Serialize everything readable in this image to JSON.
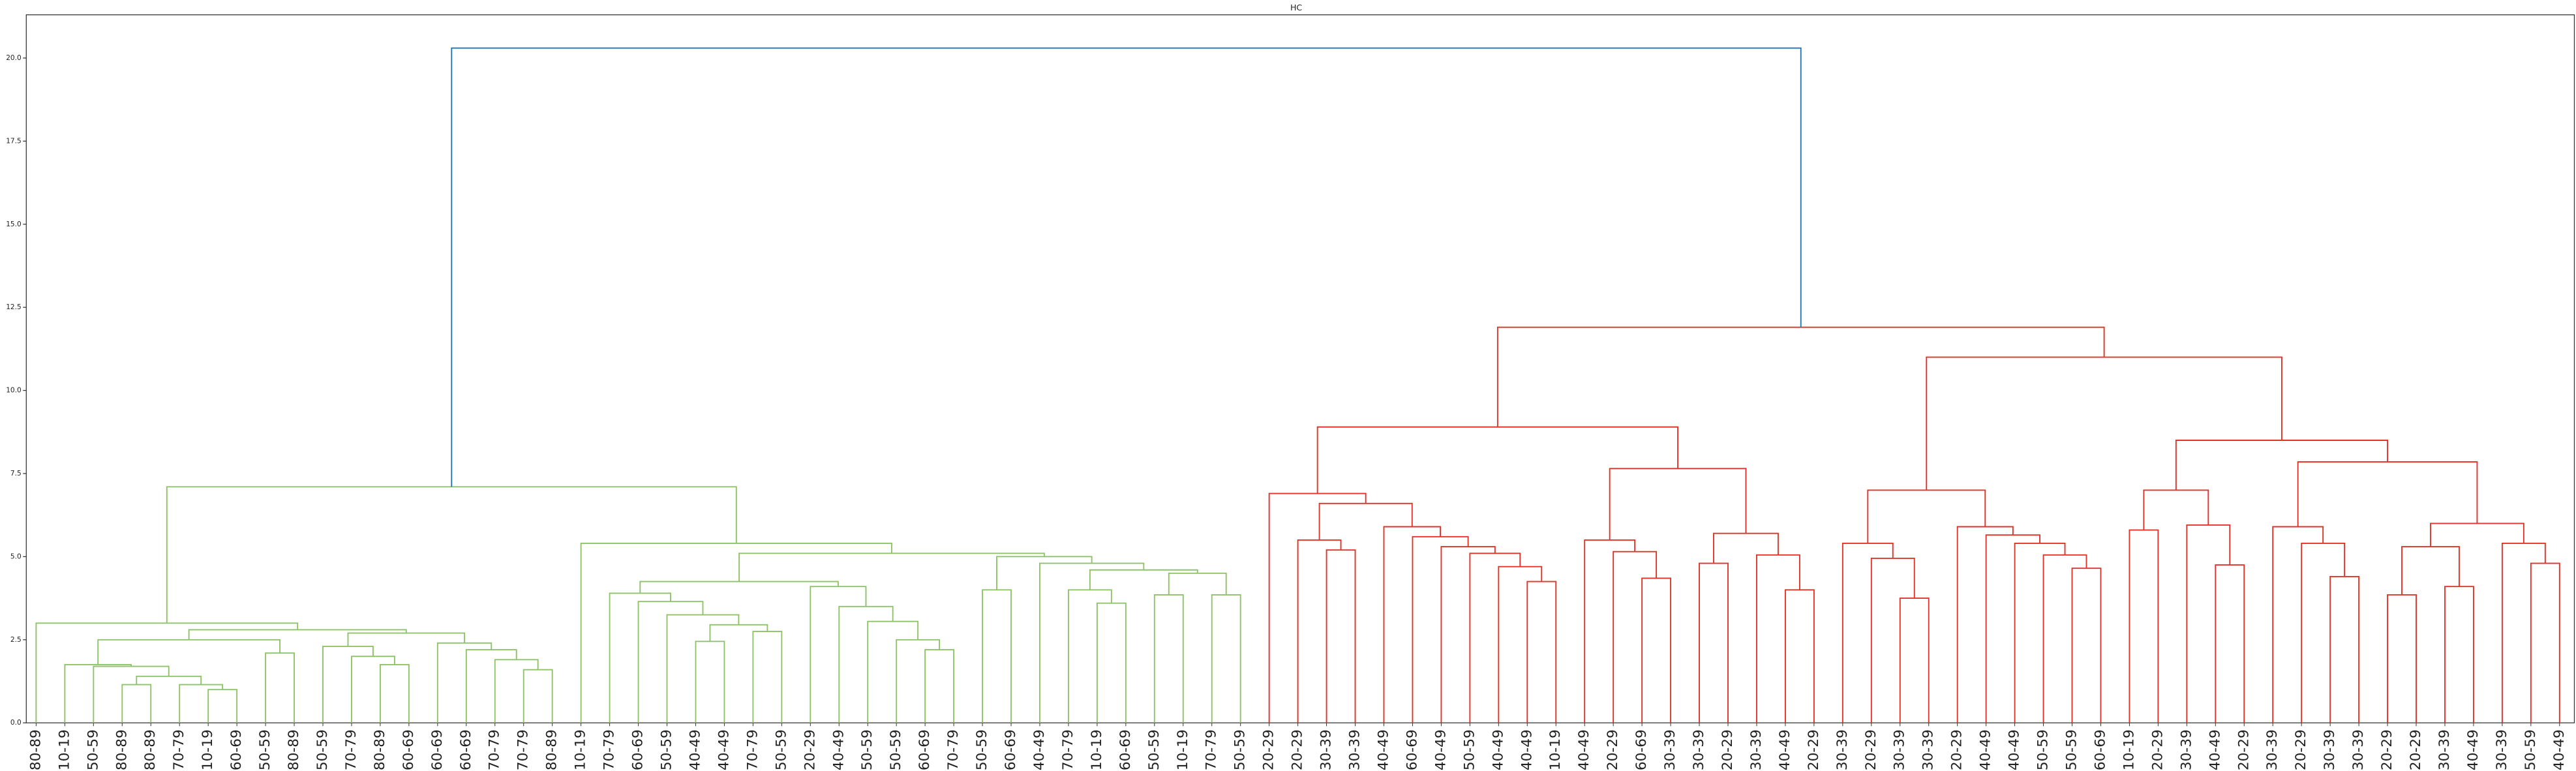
{
  "chart_data": {
    "type": "dendrogram",
    "title": "HC",
    "ylim": [
      0,
      21.3
    ],
    "yticks": [
      {
        "value": 0,
        "label": "0.0"
      },
      2.5,
      {
        "value": 5,
        "label": "5.0"
      },
      7.5,
      {
        "value": 10,
        "label": "10.0"
      },
      12.5,
      {
        "value": 15,
        "label": "15.0"
      },
      17.5,
      {
        "value": 20,
        "label": "20.0"
      }
    ],
    "tree": {
      "height": 20.3,
      "color": "#1f77b4",
      "children": [
        {
          "height": 7.1,
          "color": "#8fc36a",
          "children": [
            {
              "height": 3.0,
              "children": [
                "80-89",
                {
                  "height": 2.8,
                  "children": [
                    {
                      "height": 2.5,
                      "children": [
                        {
                          "height": 1.75,
                          "children": [
                            "10-19",
                            {
                              "height": 1.7,
                              "children": [
                                "50-59",
                                {
                                  "height": 1.4,
                                  "children": [
                                    {
                                      "height": 1.15,
                                      "children": [
                                        "80-89",
                                        "80-89"
                                      ]
                                    },
                                    {
                                      "height": 1.15,
                                      "children": [
                                        "70-79",
                                        {
                                          "height": 1.0,
                                          "children": [
                                            "10-19",
                                            "60-69"
                                          ]
                                        }
                                      ]
                                    }
                                  ]
                                }
                              ]
                            }
                          ]
                        },
                        {
                          "height": 2.1,
                          "children": [
                            "50-59",
                            "80-89"
                          ]
                        }
                      ]
                    },
                    {
                      "height": 2.7,
                      "children": [
                        {
                          "height": 2.3,
                          "children": [
                            "50-59",
                            {
                              "height": 2.0,
                              "children": [
                                "70-79",
                                {
                                  "height": 1.75,
                                  "children": [
                                    "80-89",
                                    "60-69"
                                  ]
                                }
                              ]
                            }
                          ]
                        },
                        {
                          "height": 2.4,
                          "children": [
                            "60-69",
                            {
                              "height": 2.2,
                              "children": [
                                "60-69",
                                {
                                  "height": 1.9,
                                  "children": [
                                    "70-79",
                                    {
                                      "height": 1.6,
                                      "children": [
                                        "70-79",
                                        "80-89"
                                      ]
                                    }
                                  ]
                                }
                              ]
                            }
                          ]
                        }
                      ]
                    }
                  ]
                }
              ]
            },
            {
              "height": 5.4,
              "children": [
                "10-19",
                {
                  "height": 5.1,
                  "children": [
                    {
                      "height": 4.25,
                      "children": [
                        {
                          "height": 3.9,
                          "children": [
                            "70-79",
                            {
                              "height": 3.65,
                              "children": [
                                "60-69",
                                {
                                  "height": 3.25,
                                  "children": [
                                    "50-59",
                                    {
                                      "height": 2.95,
                                      "children": [
                                        {
                                          "height": 2.45,
                                          "children": [
                                            "40-49",
                                            "40-49"
                                          ]
                                        },
                                        {
                                          "height": 2.75,
                                          "children": [
                                            "70-79",
                                            "50-59"
                                          ]
                                        }
                                      ]
                                    }
                                  ]
                                }
                              ]
                            }
                          ]
                        },
                        {
                          "height": 4.1,
                          "children": [
                            "20-29",
                            {
                              "height": 3.5,
                              "children": [
                                "40-49",
                                {
                                  "height": 3.05,
                                  "children": [
                                    "50-59",
                                    {
                                      "height": 2.5,
                                      "children": [
                                        "50-59",
                                        {
                                          "height": 2.2,
                                          "children": [
                                            "60-69",
                                            "70-79"
                                          ]
                                        }
                                      ]
                                    }
                                  ]
                                }
                              ]
                            }
                          ]
                        }
                      ]
                    },
                    {
                      "height": 5.0,
                      "children": [
                        {
                          "height": 4.0,
                          "children": [
                            "50-59",
                            "60-69"
                          ]
                        },
                        {
                          "height": 4.8,
                          "children": [
                            "40-49",
                            {
                              "height": 4.6,
                              "children": [
                                {
                                  "height": 4.0,
                                  "children": [
                                    "70-79",
                                    {
                                      "height": 3.6,
                                      "children": [
                                        "10-19",
                                        "60-69"
                                      ]
                                    }
                                  ]
                                },
                                {
                                  "height": 4.5,
                                  "children": [
                                    {
                                      "height": 3.85,
                                      "children": [
                                        "50-59",
                                        "10-19"
                                      ]
                                    },
                                    {
                                      "height": 3.85,
                                      "children": [
                                        "70-79",
                                        "50-59"
                                      ]
                                    }
                                  ]
                                }
                              ]
                            }
                          ]
                        }
                      ]
                    }
                  ]
                }
              ]
            }
          ]
        },
        {
          "height": 11.9,
          "color": "#e03428",
          "children": [
            {
              "height": 8.9,
              "children": [
                {
                  "height": 6.9,
                  "children": [
                    "20-29",
                    {
                      "height": 6.6,
                      "children": [
                        {
                          "height": 5.5,
                          "children": [
                            "20-29",
                            {
                              "height": 5.2,
                              "children": [
                                "30-39",
                                "30-39"
                              ]
                            }
                          ]
                        },
                        {
                          "height": 5.9,
                          "children": [
                            "40-49",
                            {
                              "height": 5.6,
                              "children": [
                                "60-69",
                                {
                                  "height": 5.3,
                                  "children": [
                                    "40-49",
                                    {
                                      "height": 5.1,
                                      "children": [
                                        "50-59",
                                        {
                                          "height": 4.7,
                                          "children": [
                                            "40-49",
                                            {
                                              "height": 4.25,
                                              "children": [
                                                "40-49",
                                                "10-19"
                                              ]
                                            }
                                          ]
                                        }
                                      ]
                                    }
                                  ]
                                }
                              ]
                            }
                          ]
                        }
                      ]
                    }
                  ]
                },
                {
                  "height": 7.65,
                  "children": [
                    {
                      "height": 5.5,
                      "children": [
                        "40-49",
                        {
                          "height": 5.15,
                          "children": [
                            "20-29",
                            {
                              "height": 4.35,
                              "children": [
                                "60-69",
                                "30-39"
                              ]
                            }
                          ]
                        }
                      ]
                    },
                    {
                      "height": 5.7,
                      "children": [
                        {
                          "height": 4.8,
                          "children": [
                            "30-39",
                            "20-29"
                          ]
                        },
                        {
                          "height": 5.05,
                          "children": [
                            "30-39",
                            {
                              "height": 4.0,
                              "children": [
                                "40-49",
                                "20-29"
                              ]
                            }
                          ]
                        }
                      ]
                    }
                  ]
                }
              ]
            },
            {
              "height": 11.0,
              "children": [
                {
                  "height": 7.0,
                  "children": [
                    {
                      "height": 5.4,
                      "children": [
                        "30-39",
                        {
                          "height": 4.95,
                          "children": [
                            "20-29",
                            {
                              "height": 3.75,
                              "children": [
                                "30-39",
                                "30-39"
                              ]
                            }
                          ]
                        }
                      ]
                    },
                    {
                      "height": 5.9,
                      "children": [
                        "20-29",
                        {
                          "height": 5.65,
                          "children": [
                            "40-49",
                            {
                              "height": 5.4,
                              "children": [
                                "40-49",
                                {
                                  "height": 5.05,
                                  "children": [
                                    "50-59",
                                    {
                                      "height": 4.65,
                                      "children": [
                                        "50-59",
                                        "60-69"
                                      ]
                                    }
                                  ]
                                }
                              ]
                            }
                          ]
                        }
                      ]
                    }
                  ]
                },
                {
                  "height": 8.5,
                  "children": [
                    {
                      "height": 7.0,
                      "children": [
                        {
                          "height": 5.8,
                          "children": [
                            "10-19",
                            "20-29"
                          ]
                        },
                        {
                          "height": 5.95,
                          "children": [
                            "30-39",
                            {
                              "height": 4.75,
                              "children": [
                                "40-49",
                                "20-29"
                              ]
                            }
                          ]
                        }
                      ]
                    },
                    {
                      "height": 7.85,
                      "children": [
                        {
                          "height": 5.9,
                          "children": [
                            "30-39",
                            {
                              "height": 5.4,
                              "children": [
                                "20-29",
                                {
                                  "height": 4.4,
                                  "children": [
                                    "30-39",
                                    "30-39"
                                  ]
                                }
                              ]
                            }
                          ]
                        },
                        {
                          "height": 6.0,
                          "children": [
                            {
                              "height": 5.3,
                              "children": [
                                {
                                  "height": 3.85,
                                  "children": [
                                    "20-29",
                                    "20-29"
                                  ]
                                },
                                {
                                  "height": 4.1,
                                  "children": [
                                    "30-39",
                                    "40-49"
                                  ]
                                }
                              ]
                            },
                            {
                              "height": 5.4,
                              "children": [
                                "30-39",
                                {
                                  "height": 4.8,
                                  "children": [
                                    "50-59",
                                    "40-49"
                                  ]
                                }
                              ]
                            }
                          ]
                        }
                      ]
                    }
                  ]
                }
              ]
            }
          ]
        }
      ]
    }
  }
}
